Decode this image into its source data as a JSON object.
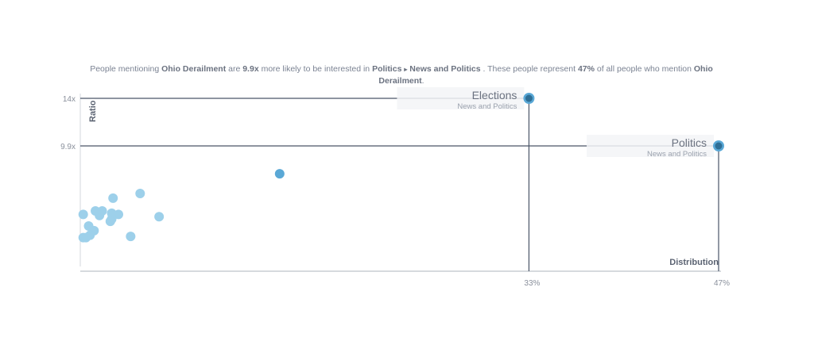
{
  "caption": {
    "p1": "People mentioning ",
    "topic": "Ohio Derailment",
    "p2": " are ",
    "ratio": "9.9x",
    "p3": " more likely to be interested in ",
    "category": "Politics",
    "arrow": "▸",
    "subcategory": "News and Politics",
    "p4": " . These people represent ",
    "share": "47%",
    "p5": " of all people who mention ",
    "topic_end": "Ohio Derailment",
    "p6": "."
  },
  "chart_data": {
    "type": "scatter",
    "xlabel": "Distribution",
    "ylabel": "Ratio",
    "x_ticks": [
      {
        "value": 33,
        "label": "33%"
      },
      {
        "value": 47,
        "label": "47%"
      }
    ],
    "y_ticks": [
      {
        "value": 14,
        "label": "14x"
      },
      {
        "value": 9.9,
        "label": "9.9x"
      }
    ],
    "highlighted": [
      {
        "name": "Elections",
        "category": "News and Politics",
        "x": 33,
        "y": 14
      },
      {
        "name": "Politics",
        "category": "News and Politics",
        "x": 47,
        "y": 9.9
      }
    ],
    "points": [
      {
        "x": 14.6,
        "y": 7.5,
        "shade": "mid"
      },
      {
        "x": 4.3,
        "y": 5.8,
        "shade": "light"
      },
      {
        "x": 2.3,
        "y": 5.4,
        "shade": "light"
      },
      {
        "x": 5.7,
        "y": 3.8,
        "shade": "light"
      },
      {
        "x": 1.3,
        "y": 3.9,
        "shade": "light"
      },
      {
        "x": 1.0,
        "y": 4.3,
        "shade": "light"
      },
      {
        "x": 1.5,
        "y": 4.3,
        "shade": "light"
      },
      {
        "x": 2.2,
        "y": 4.1,
        "shade": "light"
      },
      {
        "x": 2.7,
        "y": 4.0,
        "shade": "light"
      },
      {
        "x": 2.2,
        "y": 3.6,
        "shade": "light"
      },
      {
        "x": 2.1,
        "y": 3.4,
        "shade": "light"
      },
      {
        "x": 0.5,
        "y": 3.0,
        "shade": "light"
      },
      {
        "x": 0.9,
        "y": 2.6,
        "shade": "light"
      },
      {
        "x": 0.6,
        "y": 2.2,
        "shade": "light"
      },
      {
        "x": 0.3,
        "y": 2.0,
        "shade": "light"
      },
      {
        "x": 3.6,
        "y": 2.1,
        "shade": "light"
      },
      {
        "x": 0.1,
        "y": 4.0,
        "shade": "light"
      },
      {
        "x": 0.1,
        "y": 2.0,
        "shade": "light"
      }
    ],
    "colors": {
      "light": "#9dd0ea",
      "mid": "#5aa8d6",
      "dark": "#2f6f96",
      "line": "#4a5568"
    }
  }
}
